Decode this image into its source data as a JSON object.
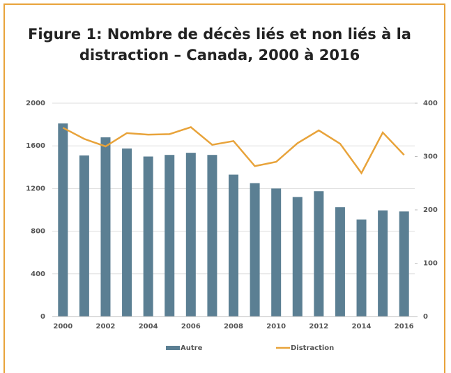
{
  "chart_data": {
    "type": "bar_line",
    "title": "Figure 1:  Nombre de décès liés et non liés à la distraction – Canada, 2000 à 2016",
    "categories": [
      "2000",
      null,
      "2002",
      null,
      "2004",
      null,
      "2006",
      null,
      "2008",
      null,
      "2010",
      null,
      "2012",
      null,
      "2014",
      null,
      "2016"
    ],
    "series": [
      {
        "name": "Autre",
        "color": "#5b7f93",
        "type": "bar",
        "axis": "y",
        "values": [
          1810,
          1510,
          1680,
          1575,
          1500,
          1515,
          1535,
          1515,
          1330,
          1250,
          1200,
          1120,
          1175,
          1025,
          910,
          995,
          985
        ]
      },
      {
        "name": "Distraction",
        "color": "#e8a33a",
        "type": "line",
        "axis": "y2",
        "values": [
          354,
          333,
          319,
          344,
          341,
          342,
          355,
          322,
          329,
          282,
          290,
          325,
          349,
          324,
          269,
          345,
          303
        ]
      }
    ],
    "ylim": [
      0,
      2000
    ],
    "yticks": [
      0,
      400,
      800,
      1200,
      1600,
      2000
    ],
    "y2lim": [
      0,
      400
    ],
    "y2ticks": [
      0,
      100,
      200,
      300,
      400
    ],
    "grid": true,
    "legend": "bottom"
  }
}
